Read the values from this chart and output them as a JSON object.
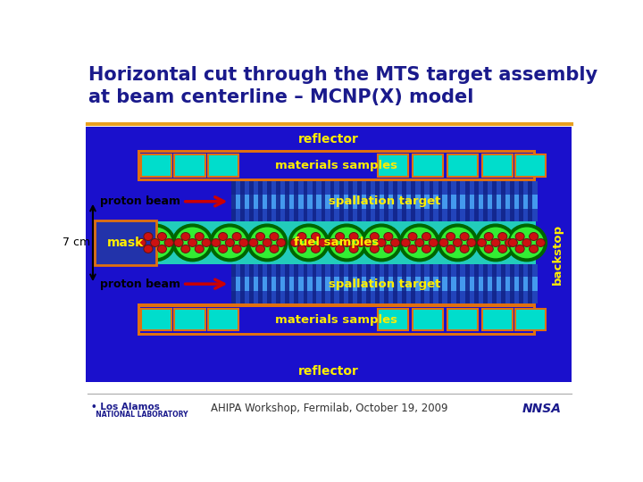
{
  "title_line1": "Horizontal cut through the MTS target assembly",
  "title_line2": "at beam centerline – MCNP(X) model",
  "title_color": "#1a1a8c",
  "title_fontsize": 15,
  "bg_color": "#ffffff",
  "separator_color": "#e8a020",
  "footer_text": "AHIPA Workshop, Fermilab, October 19, 2009",
  "diagram": {
    "outer_bg": "#1a10cc",
    "reflector_text": "reflector",
    "reflector_text_color": "#ffee00",
    "orange_border": "#e07010",
    "materials_inner_bg": "#1a10cc",
    "materials_sample_color": "#00ddcc",
    "materials_text": "materials samples",
    "materials_text_color": "#ffee00",
    "spallation_bg_dark": "#2244bb",
    "spallation_bg_light": "#4499ee",
    "spallation_stripe_dark": "#112288",
    "spallation_stripe_light": "#88ccff",
    "spallation_text": "spallation target",
    "spallation_text_color": "#ffee00",
    "fuel_bg": "#22ccbb",
    "fuel_cluster_outer": "#006600",
    "fuel_cluster_inner": "#33ee33",
    "fuel_pellet_color": "#cc1111",
    "fuel_pellet_edge": "#661111",
    "fuel_text": "fuel samples",
    "fuel_text_color": "#ffee00",
    "mask_bg": "#2233aa",
    "mask_text": "mask",
    "mask_text_color": "#ffee00",
    "backstop_text": "backstop",
    "backstop_text_color": "#ffee00",
    "arrow_color": "#cc0000",
    "proton_text": "proton beam",
    "proton_text_color": "#000000",
    "dim_text": "7 cm",
    "dim_text_color": "#000000"
  }
}
